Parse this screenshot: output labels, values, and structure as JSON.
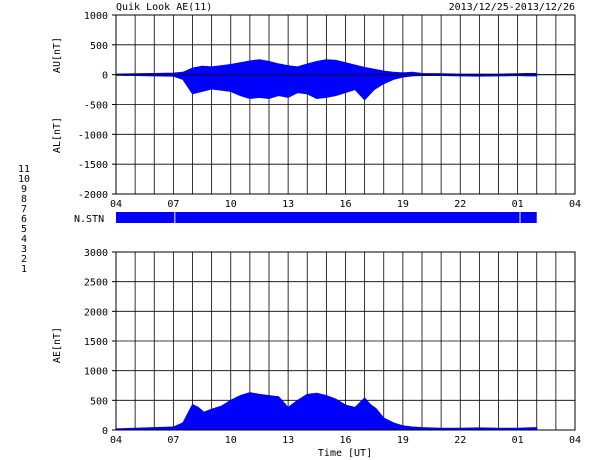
{
  "header": {
    "title": "Quik Look AE(11)",
    "date_range": "2013/12/25-2013/12/26"
  },
  "chart_data": [
    {
      "type": "area",
      "name": "AU/AL panel",
      "ylabel_upper": "AU[nT]",
      "ylabel_lower": "AL[nT]",
      "ylim": [
        -2000,
        1000
      ],
      "yticks": [
        1000,
        500,
        0,
        -500,
        -1000,
        -1500,
        -2000
      ],
      "xlim": [
        4,
        28
      ],
      "xtick_labels": [
        "04",
        "07",
        "10",
        "13",
        "16",
        "19",
        "22",
        "01",
        "04"
      ],
      "grid": true,
      "series": [
        {
          "name": "AU",
          "color": "#0000ff",
          "x": [
            4,
            5,
            6,
            7,
            7.5,
            8,
            8.5,
            9,
            9.5,
            10,
            10.5,
            11,
            11.5,
            12,
            12.5,
            13,
            13.5,
            14,
            14.5,
            15,
            15.5,
            16,
            16.5,
            17,
            17.5,
            18,
            18.5,
            19,
            19.5,
            20,
            21,
            22,
            23,
            24,
            25,
            25.5,
            26
          ],
          "values": [
            10,
            15,
            20,
            25,
            40,
            110,
            140,
            130,
            150,
            170,
            200,
            230,
            250,
            220,
            180,
            150,
            130,
            180,
            220,
            250,
            240,
            200,
            160,
            120,
            90,
            60,
            40,
            30,
            40,
            20,
            15,
            10,
            10,
            10,
            15,
            20,
            20
          ]
        },
        {
          "name": "AL",
          "color": "#0000ff",
          "x": [
            4,
            5,
            6,
            7,
            7.5,
            8,
            8.5,
            9,
            9.5,
            10,
            10.5,
            11,
            11.5,
            12,
            12.5,
            13,
            13.5,
            14,
            14.5,
            15,
            15.5,
            16,
            16.5,
            17,
            17.5,
            18,
            18.5,
            19,
            19.5,
            20,
            21,
            22,
            23,
            24,
            25,
            25.5,
            26
          ],
          "values": [
            -10,
            -15,
            -20,
            -25,
            -80,
            -320,
            -280,
            -240,
            -260,
            -280,
            -350,
            -400,
            -380,
            -400,
            -350,
            -380,
            -300,
            -320,
            -400,
            -380,
            -350,
            -300,
            -250,
            -420,
            -250,
            -150,
            -80,
            -40,
            -20,
            -15,
            -15,
            -20,
            -25,
            -20,
            -15,
            -20,
            -20
          ]
        }
      ]
    },
    {
      "type": "bar",
      "name": "station availability",
      "label": "N.STN",
      "color": "#0000ff",
      "xlim": [
        4,
        28
      ],
      "segments": [
        [
          4,
          7.05
        ],
        [
          7.1,
          25.1
        ],
        [
          25.15,
          26
        ]
      ]
    },
    {
      "type": "area",
      "name": "AE panel",
      "ylabel": "AE[nT]",
      "xlabel": "Time [UT]",
      "ylim": [
        0,
        3000
      ],
      "yticks": [
        3000,
        2500,
        2000,
        1500,
        1000,
        500,
        0
      ],
      "xlim": [
        4,
        28
      ],
      "xtick_labels": [
        "04",
        "07",
        "10",
        "13",
        "16",
        "19",
        "22",
        "01",
        "04"
      ],
      "grid": true,
      "series": [
        {
          "name": "AE",
          "color": "#0000ff",
          "x": [
            4,
            5,
            6,
            7,
            7.5,
            8,
            8.3,
            8.6,
            9,
            9.5,
            10,
            10.5,
            11,
            11.5,
            12,
            12.5,
            13,
            13.5,
            14,
            14.5,
            15,
            15.5,
            16,
            16.5,
            17,
            17.3,
            17.6,
            18,
            18.5,
            19,
            19.5,
            20,
            21,
            22,
            23,
            24,
            25,
            25.5,
            26
          ],
          "values": [
            20,
            30,
            40,
            50,
            120,
            430,
            380,
            300,
            350,
            400,
            500,
            580,
            630,
            600,
            580,
            560,
            380,
            500,
            600,
            620,
            580,
            520,
            420,
            380,
            540,
            430,
            360,
            200,
            120,
            70,
            50,
            40,
            30,
            30,
            35,
            30,
            30,
            35,
            40
          ]
        }
      ]
    }
  ],
  "legend": {
    "items": [
      {
        "label": "11",
        "color": "#00cccc"
      },
      {
        "label": "10",
        "color": "#ff00ff"
      },
      {
        "label": "9",
        "color": "#0000cc"
      },
      {
        "label": "8",
        "color": "#ffcc00"
      },
      {
        "label": "7",
        "color": "#00cc00"
      },
      {
        "label": "6",
        "color": "#ff0000"
      },
      {
        "label": "5",
        "color": "#cccccc"
      },
      {
        "label": "4",
        "color": "#999999"
      },
      {
        "label": "3",
        "color": "#008888"
      },
      {
        "label": "2",
        "color": "#880088"
      },
      {
        "label": "1",
        "color": "#0000aa"
      }
    ]
  }
}
